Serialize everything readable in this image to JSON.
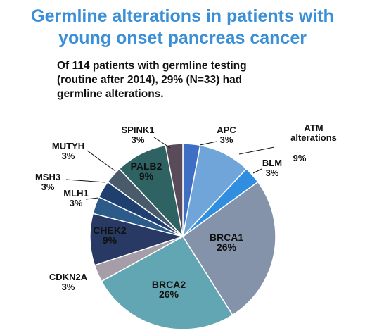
{
  "title": "Germline alterations in patients with young onset pancreas cancer",
  "title_lines": [
    "Germline alterations in patients with",
    "young onset pancreas cancer"
  ],
  "subtitle_lines": [
    "Of 114 patients with germline testing",
    "(routine after 2014), 29% (N=33) had",
    "germline alterations."
  ],
  "colors": {
    "title": "#3a8fd6",
    "text": "#111111"
  },
  "chart_data": {
    "type": "pie",
    "title": "",
    "start_angle_deg": 0,
    "direction": "clockwise",
    "series": [
      {
        "slices": [
          {
            "name": "APC",
            "value": 3,
            "label_lines": [
              "APC",
              "3%"
            ],
            "color": "#3f6fc4"
          },
          {
            "name": "ATM alterations",
            "value": 9,
            "label_lines": [
              "ATM",
              "alterations",
              "9%"
            ],
            "color": "#6fa5d8"
          },
          {
            "name": "BLM",
            "value": 3,
            "label_lines": [
              "BLM",
              "3%"
            ],
            "color": "#2f8ee0"
          },
          {
            "name": "BRCA1",
            "value": 26,
            "label_lines": [
              "BRCA1",
              "26%"
            ],
            "color": "#8593aa"
          },
          {
            "name": "BRCA2",
            "value": 26,
            "label_lines": [
              "BRCA2",
              "26%"
            ],
            "color": "#63a6b3"
          },
          {
            "name": "CDKN2A",
            "value": 3,
            "label_lines": [
              "CDKN2A",
              "3%"
            ],
            "color": "#a59ea8"
          },
          {
            "name": "CHEK2",
            "value": 9,
            "label_lines": [
              "CHEK2",
              "9%"
            ],
            "color": "#283a63"
          },
          {
            "name": "MLH1",
            "value": 3,
            "label_lines": [
              "MLH1",
              "3%"
            ],
            "color": "#2c5b8a"
          },
          {
            "name": "MSH3",
            "value": 3,
            "label_lines": [
              "MSH3",
              "3%"
            ],
            "color": "#1f3f6f"
          },
          {
            "name": "MUTYH",
            "value": 3,
            "label_lines": [
              "MUTYH",
              "3%"
            ],
            "color": "#495a6b"
          },
          {
            "name": "PALB2",
            "value": 9,
            "label_lines": [
              "PALB2",
              "9%"
            ],
            "color": "#2f6262"
          },
          {
            "name": "SPINK1",
            "value": 3,
            "label_lines": [
              "SPINK1",
              "3%"
            ],
            "color": "#594b5a"
          }
        ]
      }
    ],
    "legend": "none",
    "data_labels": "on-chart"
  }
}
